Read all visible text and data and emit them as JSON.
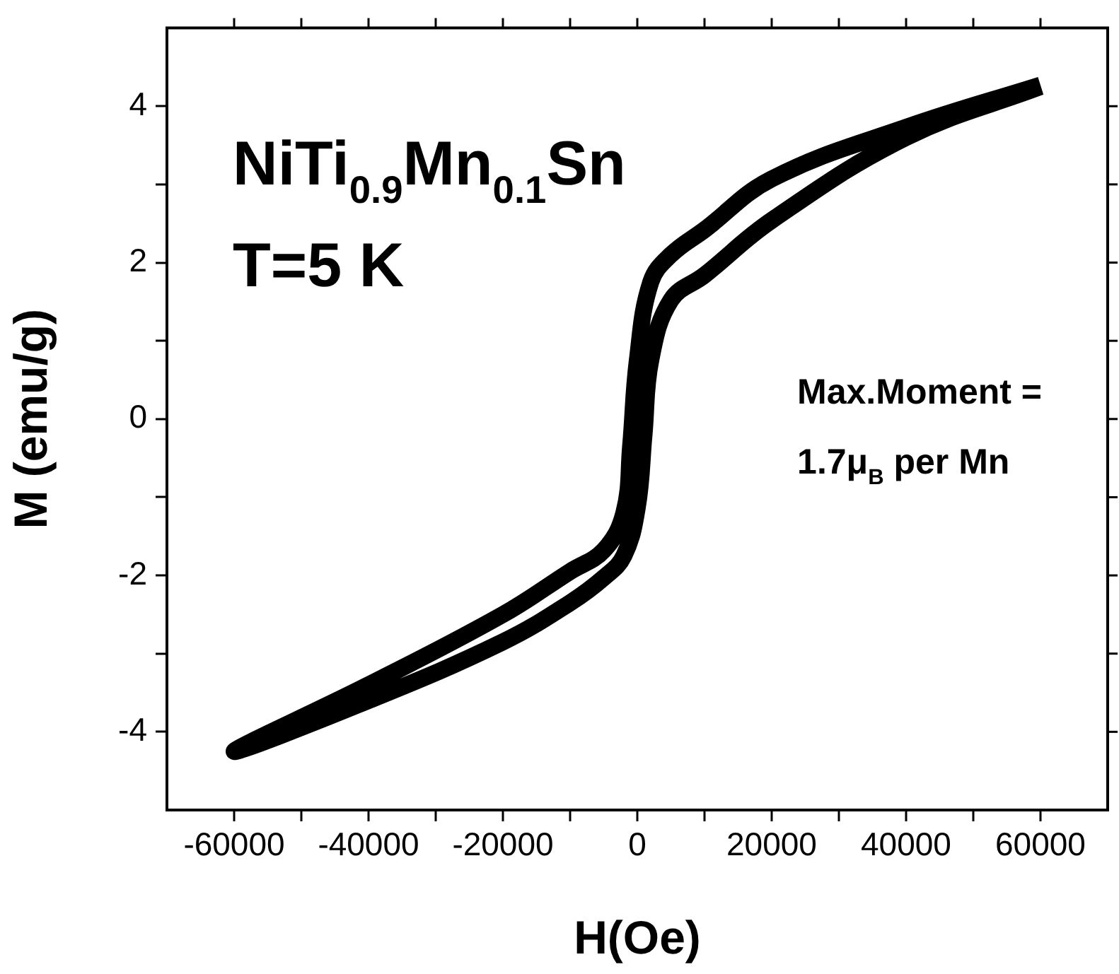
{
  "chart_data": {
    "type": "line",
    "xlabel": "H(Oe)",
    "ylabel": "M (emu/g)",
    "xlim": [
      -70000,
      70000
    ],
    "ylim": [
      -5,
      5
    ],
    "xticks": [
      -60000,
      {
        "value": -50000,
        "label": null
      },
      -40000,
      {
        "value": -30000,
        "label": null
      },
      -20000,
      {
        "value": -10000,
        "label": null
      },
      0,
      {
        "value": 10000,
        "label": null
      },
      20000,
      {
        "value": 30000,
        "label": null
      },
      40000,
      {
        "value": 50000,
        "label": null
      },
      60000
    ],
    "yticks": [
      -4,
      {
        "value": -3,
        "label": null
      },
      -2,
      {
        "value": -1,
        "label": null
      },
      0,
      {
        "value": 1,
        "label": null
      },
      2,
      {
        "value": 3,
        "label": null
      },
      4
    ],
    "grid": false,
    "legend": false,
    "marker": "none",
    "line_style": "solid",
    "series": [
      {
        "color": "#000000",
        "x": [
          60000,
          40000,
          20000,
          10000,
          5000,
          2000,
          0,
          -1000,
          -2000,
          -5000,
          -10000,
          -20000,
          -40000,
          -60000,
          -40000,
          -20000,
          -10000,
          -5000,
          -2000,
          0,
          1000,
          2000,
          5000,
          10000,
          20000,
          40000,
          60000
        ],
        "values": [
          4.27,
          3.73,
          3.07,
          2.42,
          2.1,
          1.75,
          0.75,
          -0.35,
          -1.2,
          -1.68,
          -1.95,
          -2.5,
          -3.4,
          -4.25,
          -3.6,
          -2.85,
          -2.35,
          -2.03,
          -1.75,
          -1.13,
          -0.2,
          0.75,
          1.52,
          1.84,
          2.54,
          3.6,
          4.25
        ]
      }
    ],
    "annotations": [
      "NiTi$_{0.9}$Mn$_{0.1}$Sn",
      "T=5 K",
      "Max.Moment =",
      "1.7μ$_{B}$ per Mn"
    ]
  }
}
